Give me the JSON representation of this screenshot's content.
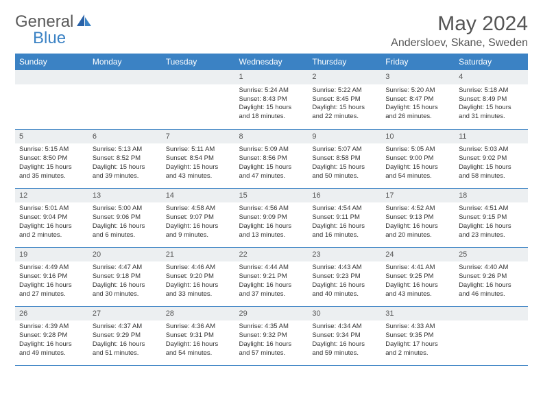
{
  "brand": {
    "text1": "General",
    "text2": "Blue"
  },
  "title": "May 2024",
  "location": "Andersloev, Skane, Sweden",
  "colors": {
    "header_bg": "#3b82c4",
    "header_fg": "#ffffff",
    "daynum_bg": "#eceff1",
    "border": "#3b82c4",
    "text": "#333333",
    "title": "#555555"
  },
  "weekdays": [
    "Sunday",
    "Monday",
    "Tuesday",
    "Wednesday",
    "Thursday",
    "Friday",
    "Saturday"
  ],
  "blank_leading": 3,
  "days": [
    {
      "n": "1",
      "sunrise": "5:24 AM",
      "sunset": "8:43 PM",
      "daylight": "15 hours and 18 minutes."
    },
    {
      "n": "2",
      "sunrise": "5:22 AM",
      "sunset": "8:45 PM",
      "daylight": "15 hours and 22 minutes."
    },
    {
      "n": "3",
      "sunrise": "5:20 AM",
      "sunset": "8:47 PM",
      "daylight": "15 hours and 26 minutes."
    },
    {
      "n": "4",
      "sunrise": "5:18 AM",
      "sunset": "8:49 PM",
      "daylight": "15 hours and 31 minutes."
    },
    {
      "n": "5",
      "sunrise": "5:15 AM",
      "sunset": "8:50 PM",
      "daylight": "15 hours and 35 minutes."
    },
    {
      "n": "6",
      "sunrise": "5:13 AM",
      "sunset": "8:52 PM",
      "daylight": "15 hours and 39 minutes."
    },
    {
      "n": "7",
      "sunrise": "5:11 AM",
      "sunset": "8:54 PM",
      "daylight": "15 hours and 43 minutes."
    },
    {
      "n": "8",
      "sunrise": "5:09 AM",
      "sunset": "8:56 PM",
      "daylight": "15 hours and 47 minutes."
    },
    {
      "n": "9",
      "sunrise": "5:07 AM",
      "sunset": "8:58 PM",
      "daylight": "15 hours and 50 minutes."
    },
    {
      "n": "10",
      "sunrise": "5:05 AM",
      "sunset": "9:00 PM",
      "daylight": "15 hours and 54 minutes."
    },
    {
      "n": "11",
      "sunrise": "5:03 AM",
      "sunset": "9:02 PM",
      "daylight": "15 hours and 58 minutes."
    },
    {
      "n": "12",
      "sunrise": "5:01 AM",
      "sunset": "9:04 PM",
      "daylight": "16 hours and 2 minutes."
    },
    {
      "n": "13",
      "sunrise": "5:00 AM",
      "sunset": "9:06 PM",
      "daylight": "16 hours and 6 minutes."
    },
    {
      "n": "14",
      "sunrise": "4:58 AM",
      "sunset": "9:07 PM",
      "daylight": "16 hours and 9 minutes."
    },
    {
      "n": "15",
      "sunrise": "4:56 AM",
      "sunset": "9:09 PM",
      "daylight": "16 hours and 13 minutes."
    },
    {
      "n": "16",
      "sunrise": "4:54 AM",
      "sunset": "9:11 PM",
      "daylight": "16 hours and 16 minutes."
    },
    {
      "n": "17",
      "sunrise": "4:52 AM",
      "sunset": "9:13 PM",
      "daylight": "16 hours and 20 minutes."
    },
    {
      "n": "18",
      "sunrise": "4:51 AM",
      "sunset": "9:15 PM",
      "daylight": "16 hours and 23 minutes."
    },
    {
      "n": "19",
      "sunrise": "4:49 AM",
      "sunset": "9:16 PM",
      "daylight": "16 hours and 27 minutes."
    },
    {
      "n": "20",
      "sunrise": "4:47 AM",
      "sunset": "9:18 PM",
      "daylight": "16 hours and 30 minutes."
    },
    {
      "n": "21",
      "sunrise": "4:46 AM",
      "sunset": "9:20 PM",
      "daylight": "16 hours and 33 minutes."
    },
    {
      "n": "22",
      "sunrise": "4:44 AM",
      "sunset": "9:21 PM",
      "daylight": "16 hours and 37 minutes."
    },
    {
      "n": "23",
      "sunrise": "4:43 AM",
      "sunset": "9:23 PM",
      "daylight": "16 hours and 40 minutes."
    },
    {
      "n": "24",
      "sunrise": "4:41 AM",
      "sunset": "9:25 PM",
      "daylight": "16 hours and 43 minutes."
    },
    {
      "n": "25",
      "sunrise": "4:40 AM",
      "sunset": "9:26 PM",
      "daylight": "16 hours and 46 minutes."
    },
    {
      "n": "26",
      "sunrise": "4:39 AM",
      "sunset": "9:28 PM",
      "daylight": "16 hours and 49 minutes."
    },
    {
      "n": "27",
      "sunrise": "4:37 AM",
      "sunset": "9:29 PM",
      "daylight": "16 hours and 51 minutes."
    },
    {
      "n": "28",
      "sunrise": "4:36 AM",
      "sunset": "9:31 PM",
      "daylight": "16 hours and 54 minutes."
    },
    {
      "n": "29",
      "sunrise": "4:35 AM",
      "sunset": "9:32 PM",
      "daylight": "16 hours and 57 minutes."
    },
    {
      "n": "30",
      "sunrise": "4:34 AM",
      "sunset": "9:34 PM",
      "daylight": "16 hours and 59 minutes."
    },
    {
      "n": "31",
      "sunrise": "4:33 AM",
      "sunset": "9:35 PM",
      "daylight": "17 hours and 2 minutes."
    }
  ],
  "labels": {
    "sunrise": "Sunrise:",
    "sunset": "Sunset:",
    "daylight": "Daylight:"
  }
}
